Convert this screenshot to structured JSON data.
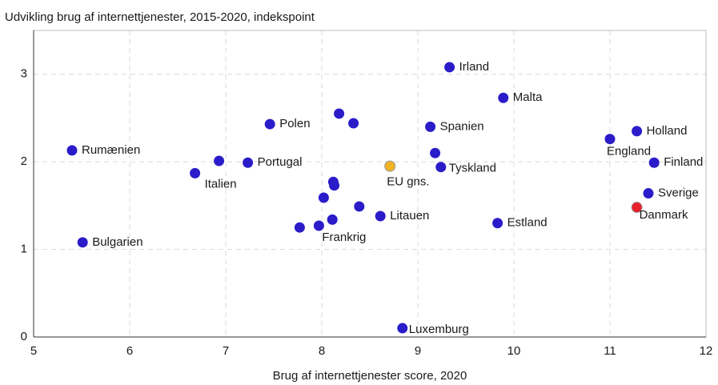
{
  "chart_data": {
    "type": "scatter",
    "title": "Udvikling brug af internettjenester, 2015-2020, indekspoint",
    "x_label": "Brug af internettjenester score, 2020",
    "labels": [
      "Rumænien",
      "Bulgarien",
      "Italien",
      null,
      "Portugal",
      "Polen",
      null,
      null,
      null,
      null,
      null,
      null,
      null,
      "Frankrig",
      null,
      "Litauen",
      "EU gns.",
      "Luxemburg",
      "Irland",
      "Spanien",
      null,
      "Tyskland",
      "Malta",
      "Estland",
      "England",
      "Holland",
      "Finland",
      "Sverige",
      "Danmark"
    ],
    "x": [
      5.4,
      5.51,
      6.68,
      6.93,
      7.23,
      7.46,
      8.18,
      8.33,
      8.12,
      8.13,
      8.02,
      8.39,
      7.77,
      7.97,
      8.11,
      8.61,
      8.71,
      8.84,
      9.33,
      9.13,
      9.18,
      9.24,
      9.89,
      9.83,
      11.0,
      11.28,
      11.46,
      11.4,
      11.28
    ],
    "values": [
      2.13,
      1.08,
      1.87,
      2.01,
      1.99,
      2.43,
      2.55,
      2.44,
      1.77,
      1.73,
      1.59,
      1.49,
      1.25,
      1.27,
      1.34,
      1.38,
      1.95,
      0.1,
      3.08,
      2.4,
      2.1,
      1.94,
      2.73,
      1.3,
      2.26,
      2.35,
      1.99,
      1.64,
      1.48
    ],
    "colors": [
      "#2b1cc9",
      "#2b1cc9",
      "#2b1cc9",
      "#2b1cc9",
      "#2b1cc9",
      "#2b1cc9",
      "#2b1cc9",
      "#2b1cc9",
      "#2b1cc9",
      "#2b1cc9",
      "#2b1cc9",
      "#2b1cc9",
      "#2b1cc9",
      "#2b1cc9",
      "#2b1cc9",
      "#2b1cc9",
      "#f0b323",
      "#2b1cc9",
      "#2b1cc9",
      "#2b1cc9",
      "#2b1cc9",
      "#2b1cc9",
      "#2b1cc9",
      "#2b1cc9",
      "#2b1cc9",
      "#2b1cc9",
      "#2b1cc9",
      "#2b1cc9",
      "#e8202a"
    ],
    "xlim": [
      5,
      12
    ],
    "ylim": [
      0,
      3.5
    ],
    "xticks": [
      5,
      6,
      7,
      8,
      9,
      10,
      11,
      12
    ],
    "yticks": [
      0,
      1,
      2,
      3
    ],
    "grid": true
  }
}
